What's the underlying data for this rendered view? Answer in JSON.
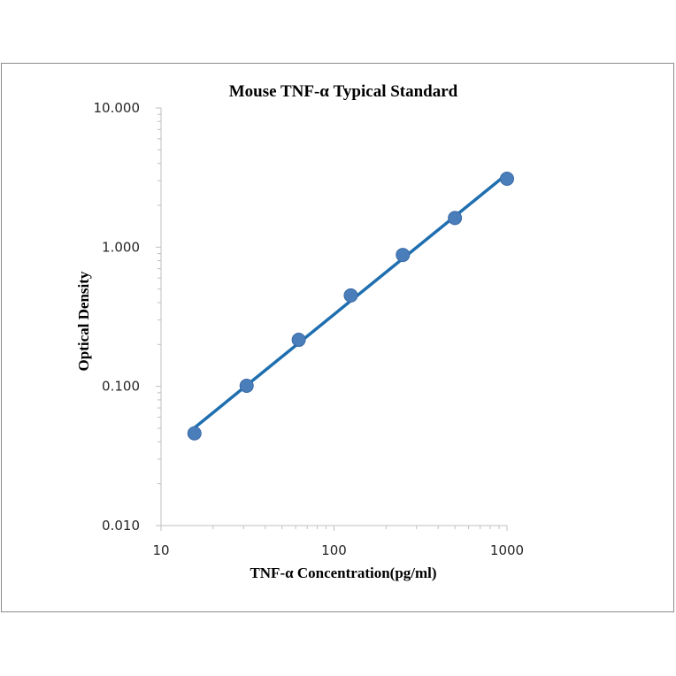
{
  "chart_data": {
    "type": "scatter",
    "title": "Mouse TNF-α Typical Standard",
    "xlabel": "TNF-α Concentration(pg/ml)",
    "ylabel": "Optical Density",
    "x_scale": "log",
    "y_scale": "log",
    "xlim": [
      10,
      1000
    ],
    "ylim": [
      0.01,
      10
    ],
    "x_ticks": [
      10,
      100,
      1000
    ],
    "x_tick_labels": [
      "10",
      "100",
      "1000"
    ],
    "y_ticks": [
      0.01,
      0.1,
      1,
      10
    ],
    "y_tick_labels": [
      "0.010",
      "0.100",
      "1.000",
      "10.000"
    ],
    "grid": false,
    "legend": "none",
    "series": [
      {
        "x": [
          15.6,
          31.25,
          62.5,
          125,
          250,
          500,
          1000
        ],
        "y": [
          0.046,
          0.101,
          0.216,
          0.45,
          0.88,
          1.62,
          3.1
        ],
        "color": "#4a7ebb",
        "trendline": true,
        "trendline_color": "#1f6fb0"
      }
    ]
  }
}
